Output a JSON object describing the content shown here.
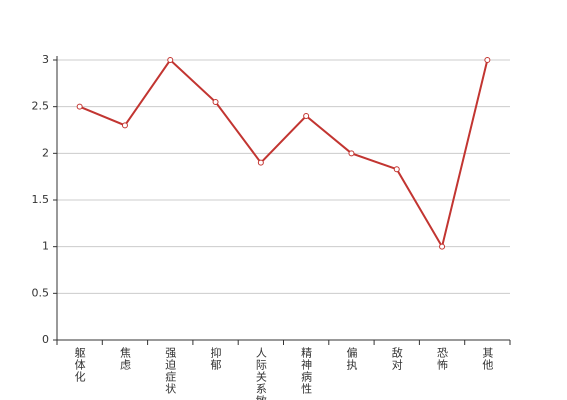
{
  "chart_data": {
    "type": "line",
    "categories": [
      "躯体化",
      "焦虑",
      "强迫症状",
      "抑郁",
      "人际关系敏感",
      "精神病性",
      "偏执",
      "敌对",
      "恐怖",
      "其他"
    ],
    "values": [
      2.5,
      2.3,
      3,
      2.55,
      1.9,
      2.4,
      2,
      1.83,
      1,
      3
    ],
    "color": "#c23531",
    "ylim": [
      0,
      3
    ],
    "yticks": [
      0,
      0.5,
      1,
      1.5,
      2,
      2.5,
      3
    ],
    "grid": true
  }
}
